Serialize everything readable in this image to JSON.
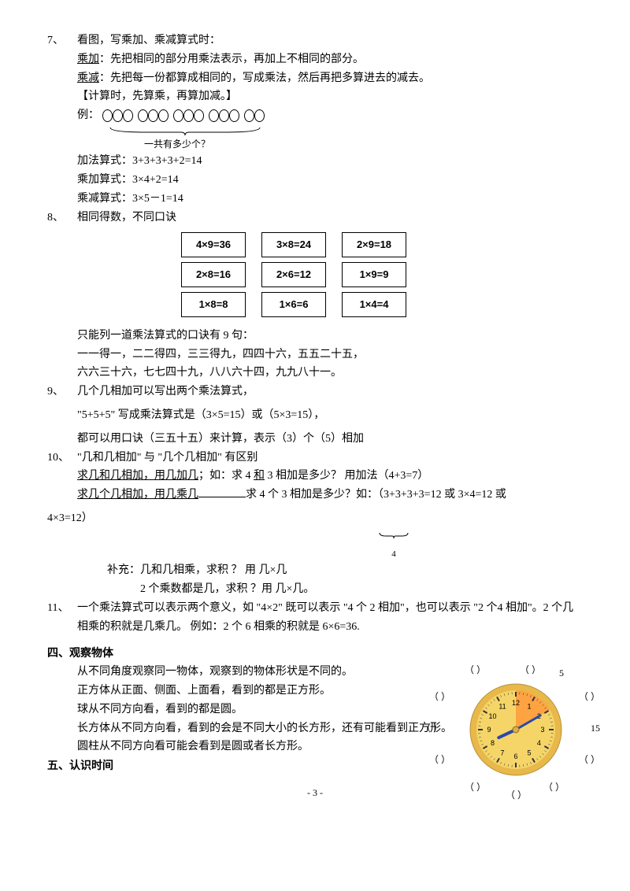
{
  "item7": {
    "num": "7、",
    "title": "看图，写乘加、乘减算式时：",
    "add_label": "乘加",
    "add_text": "：先把相同的部分用乘法表示，再加上不相同的部分。",
    "sub_label": "乘减",
    "sub_text": "：先把每一份都算成相同的，写成乘法，然后再把多算进去的减去。",
    "calc_note": "【计算时，先算乘，再算加减。】",
    "example_label": "例：",
    "groups": [
      3,
      3,
      3,
      3,
      2
    ],
    "brace_label": "一共有多少个？",
    "eq1": "加法算式：3+3+3+3+2=14",
    "eq2": "乘加算式：3×4+2=14",
    "eq3": "乘减算式：3×5－1=14"
  },
  "item8": {
    "num": "8、",
    "title": "相同得数，不同口诀",
    "grid": [
      [
        "4×9=36",
        "3×8=24",
        "2×9=18"
      ],
      [
        "2×8=16",
        "2×6=12",
        "1×9=9"
      ],
      [
        "1×8=8",
        "1×6=6",
        "1×4=4"
      ]
    ],
    "line1": "只能列一道乘法算式的口诀有 9 句：",
    "line2": "一一得一，二二得四，三三得九，四四十六，五五二十五，",
    "line3": "六六三十六，七七四十九，八八六十四，九九八十一。"
  },
  "item9": {
    "num": "9、",
    "title": "几个几相加可以写出两个乘法算式，",
    "line1": "\"5+5+5\" 写成乘法算式是（3×5=15）或（5×3=15），",
    "line2": "都可以用口诀（三五十五）来计算，表示（3）个（5）相加"
  },
  "item10": {
    "num": "10、",
    "line1a": "\"几和几相加\" 与 \"几个几相加\" 有区别",
    "line2_u": "求几和几相加，用几加几",
    "line2_t": "；如：求 4 ",
    "line2_u2": "和",
    "line2_t2": " 3 相加是多少？   用加法（4+3=7）",
    "line3_u": "求几个几相加，用几乘几",
    "line3_t": "求 4 个 3 相加是多少？如：（3+3+3+3=12 或 3×4=12 或",
    "line4": "4×3=12）",
    "brace_small": "4",
    "supp1": "补充：几和几相乘，求积 ？       用  几×几",
    "supp2": "2 个乘数都是几，求积  ？用  几×几。"
  },
  "item11": {
    "num": "11、",
    "text": "一个乘法算式可以表示两个意义，如 \"4×2\" 既可以表示 \"4 个 2 相加\"，也可以表示 \"2 个4 相加\"。2 个几相乘的积就是几乘几。    例如：2 个 6 相乘的积就是 6×6=36."
  },
  "section4": {
    "title": "四、观察物体",
    "l1": "从不同角度观察同一物体，观察到的物体形状是不同的。",
    "l2": "正方体从正面、侧面、上面看，看到的都是正方形。",
    "l3": "球从不同方向看，看到的都是圆。",
    "l4": "长方体从不同方向看，看到的会是不同大小的长方形，还有可能看到正方形。",
    "l5": "圆柱从不同方向看可能会看到是圆或者长方形。"
  },
  "section5": {
    "title": "五、认识时间"
  },
  "clock": {
    "labels": {
      "n5": "5",
      "n15": "15",
      "paren": "（  ）"
    },
    "face_fill": "#f5d568",
    "rim_fill": "#e8b84a",
    "sector_fill": "#ff9a3c",
    "tick_color": "#333333",
    "hand_color": "#2a4aa8",
    "center_fill": "#d4b24a"
  },
  "page_number": "- 3 -"
}
